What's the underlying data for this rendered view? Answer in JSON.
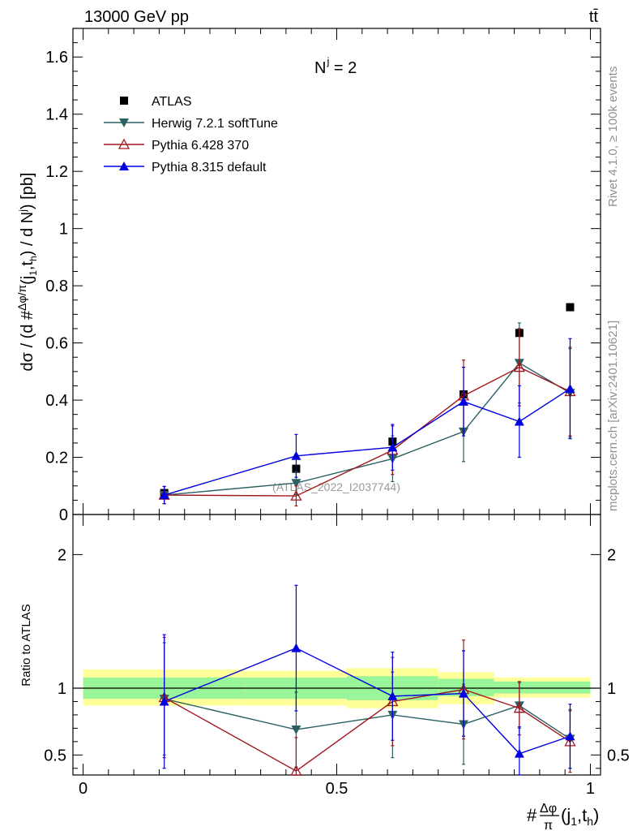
{
  "header": {
    "energy_label": "13000 GeV pp",
    "process_label": "tt̄"
  },
  "side_text": {
    "rivet": "Rivet 4.1.0, ≥ 100k events",
    "mcplots": "mcplots.cern.ch [arXiv:2401.10621]"
  },
  "colors": {
    "atlas": "#000000",
    "herwig": "#2a5f63",
    "pythia6": "#a0161e",
    "pythia8": "#0000e0",
    "band_inner": "#99f599",
    "band_outer": "#ffff99"
  },
  "chart_data": [
    {
      "type": "scatter",
      "panel": "main",
      "title": "N^j = 2",
      "watermark": "(ATLAS_2022_I2037744)",
      "ylabel": "dσ / (d #Δφ/π(j1,th) / d Nj) [pb]",
      "ylim": [
        0,
        1.7
      ],
      "y_ticks": [
        "0.2",
        "0.4",
        "0.6",
        "0.8",
        "1",
        "1.2",
        "1.4",
        "1.6"
      ],
      "y_tick_values": [
        0.2,
        0.4,
        0.6,
        0.8,
        1.0,
        1.2,
        1.4,
        1.6
      ],
      "y_zero_label": "0",
      "legend_position": "top-left",
      "series": [
        {
          "name": "ATLAS",
          "key": "atlas",
          "marker": "square",
          "x": [
            0.16,
            0.42,
            0.61,
            0.75,
            0.86,
            0.96
          ],
          "y": [
            0.075,
            0.16,
            0.255,
            0.42,
            0.635,
            0.725
          ],
          "err": [
            0.01,
            0.01,
            0.01,
            0.01,
            0.01,
            0.01
          ]
        },
        {
          "name": "Herwig 7.2.1 softTune",
          "key": "herwig",
          "marker": "triangle-down",
          "x": [
            0.16,
            0.42,
            0.61,
            0.75,
            0.86,
            0.96
          ],
          "y": [
            0.068,
            0.11,
            0.195,
            0.29,
            0.53,
            0.425
          ],
          "err": [
            0.03,
            0.04,
            0.08,
            0.105,
            0.14,
            0.155
          ]
        },
        {
          "name": "Pythia 6.428 370",
          "key": "pythia6",
          "marker": "triangle-up-open",
          "x": [
            0.16,
            0.42,
            0.61,
            0.75,
            0.86,
            0.96
          ],
          "y": [
            0.068,
            0.065,
            0.225,
            0.415,
            0.515,
            0.43
          ],
          "err": [
            0.03,
            0.035,
            0.085,
            0.125,
            0.135,
            0.155
          ]
        },
        {
          "name": "Pythia 8.315 default",
          "key": "pythia8",
          "marker": "triangle-up",
          "x": [
            0.16,
            0.42,
            0.61,
            0.75,
            0.86,
            0.96
          ],
          "y": [
            0.068,
            0.205,
            0.235,
            0.395,
            0.325,
            0.44
          ],
          "err": [
            0.03,
            0.075,
            0.08,
            0.12,
            0.125,
            0.175
          ]
        }
      ]
    },
    {
      "type": "scatter",
      "panel": "ratio",
      "ylabel": "Ratio to ATLAS",
      "xlabel": "#Δφ/π(j1,th)",
      "xlim": [
        0,
        1
      ],
      "ylim": [
        0.35,
        2.3
      ],
      "x_ticks": [
        "0",
        "0.5",
        "1"
      ],
      "x_tick_values": [
        0,
        0.5,
        1
      ],
      "y_ticks": [
        "0.5",
        "1",
        "2"
      ],
      "y_tick_values": [
        0.5,
        1,
        2
      ],
      "bands": [
        {
          "x0": 0.0,
          "x1": 0.32,
          "inner": [
            0.92,
            1.08
          ],
          "outer": [
            0.87,
            1.14
          ]
        },
        {
          "x0": 0.32,
          "x1": 0.52,
          "inner": [
            0.92,
            1.08
          ],
          "outer": [
            0.87,
            1.13
          ]
        },
        {
          "x0": 0.52,
          "x1": 0.7,
          "inner": [
            0.91,
            1.09
          ],
          "outer": [
            0.85,
            1.15
          ]
        },
        {
          "x0": 0.7,
          "x1": 0.81,
          "inner": [
            0.94,
            1.07
          ],
          "outer": [
            0.88,
            1.12
          ]
        },
        {
          "x0": 0.81,
          "x1": 1.0,
          "inner": [
            0.96,
            1.05
          ],
          "outer": [
            0.93,
            1.08
          ]
        }
      ],
      "series": [
        {
          "name": "Herwig 7.2.1 softTune",
          "key": "herwig",
          "marker": "triangle-down",
          "x": [
            0.16,
            0.42,
            0.61,
            0.75,
            0.86,
            0.96
          ],
          "y": [
            0.92,
            0.69,
            0.8,
            0.73,
            0.87,
            0.62
          ],
          "err": [
            0.42,
            0.28,
            0.32,
            0.3,
            0.17,
            0.22
          ]
        },
        {
          "name": "Pythia 6.428 370",
          "key": "pythia6",
          "marker": "triangle-up-open",
          "x": [
            0.16,
            0.42,
            0.61,
            0.75,
            0.86,
            0.96
          ],
          "y": [
            0.93,
            0.38,
            0.9,
            0.99,
            0.85,
            0.6
          ],
          "err": [
            0.45,
            0.25,
            0.33,
            0.37,
            0.2,
            0.23
          ]
        },
        {
          "name": "Pythia 8.315 default",
          "key": "pythia8",
          "marker": "triangle-up",
          "x": [
            0.16,
            0.42,
            0.61,
            0.75,
            0.86,
            0.96
          ],
          "y": [
            0.9,
            1.3,
            0.94,
            0.96,
            0.51,
            0.64
          ],
          "err": [
            0.5,
            0.47,
            0.33,
            0.32,
            0.2,
            0.24
          ]
        }
      ]
    }
  ]
}
